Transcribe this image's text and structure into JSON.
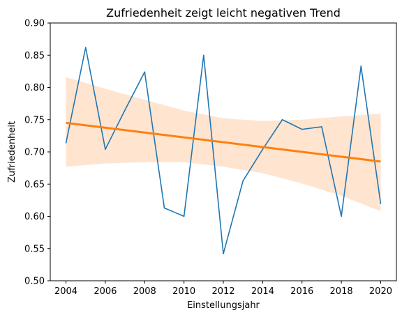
{
  "chart_data": {
    "type": "line",
    "title": "Zufriedenheit zeigt leicht negativen Trend",
    "xlabel": "Einstellungsjahr",
    "ylabel": "Zufriedenheit",
    "xlim": [
      2003.2,
      2020.8
    ],
    "ylim": [
      0.5,
      0.9
    ],
    "x_ticks": [
      2004,
      2006,
      2008,
      2010,
      2012,
      2014,
      2016,
      2018,
      2020
    ],
    "y_ticks": [
      0.5,
      0.55,
      0.6,
      0.65,
      0.7,
      0.75,
      0.8,
      0.85,
      0.9
    ],
    "y_tick_labels": [
      "0.50",
      "0.55",
      "0.60",
      "0.65",
      "0.70",
      "0.75",
      "0.80",
      "0.85",
      "0.90"
    ],
    "grid": false,
    "series": [
      {
        "role": "observed",
        "color": "#1f77b4",
        "x": [
          2004,
          2005,
          2006,
          2007,
          2008,
          2009,
          2010,
          2011,
          2012,
          2013,
          2014,
          2015,
          2016,
          2017,
          2018,
          2019,
          2020
        ],
        "y": [
          0.714,
          0.862,
          0.704,
          0.765,
          0.824,
          0.613,
          0.6,
          0.85,
          0.542,
          0.655,
          0.704,
          0.75,
          0.735,
          0.739,
          0.6,
          0.833,
          0.62
        ]
      }
    ],
    "regression": {
      "color": "#ff7f0e",
      "band_color": "#ffe4cf",
      "x": [
        2004,
        2020
      ],
      "y": [
        0.745,
        0.685
      ],
      "ci_x": [
        2004,
        2006,
        2008,
        2010,
        2012,
        2014,
        2016,
        2018,
        2020
      ],
      "ci_lower": [
        0.677,
        0.682,
        0.684,
        0.684,
        0.677,
        0.667,
        0.651,
        0.632,
        0.608
      ],
      "ci_upper": [
        0.816,
        0.798,
        0.781,
        0.764,
        0.752,
        0.748,
        0.75,
        0.755,
        0.759
      ]
    }
  }
}
